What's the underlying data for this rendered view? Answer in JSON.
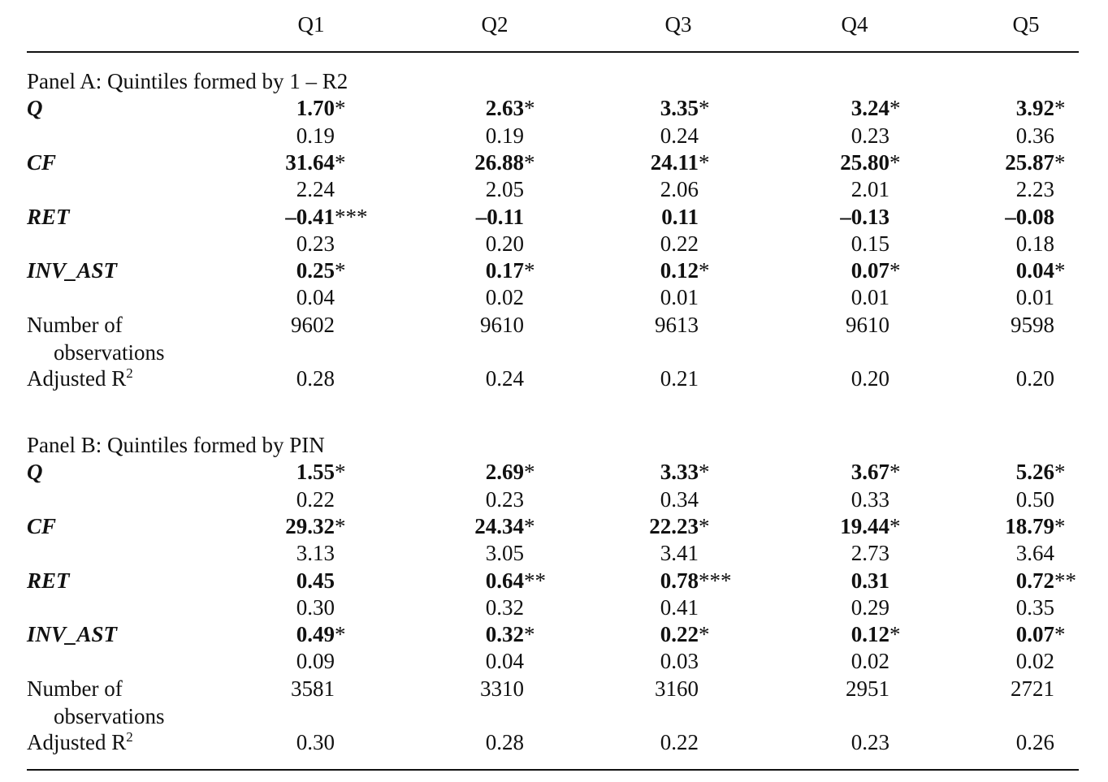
{
  "header": {
    "columns": [
      "Q1",
      "Q2",
      "Q3",
      "Q4",
      "Q5"
    ]
  },
  "panels": [
    {
      "title": "Panel A: Quintiles formed by 1 – R2",
      "variables": [
        {
          "name": "Q",
          "coefficients": [
            {
              "value": "1.70",
              "sig": "*"
            },
            {
              "value": "2.63",
              "sig": "*"
            },
            {
              "value": "3.35",
              "sig": "*"
            },
            {
              "value": "3.24",
              "sig": "*"
            },
            {
              "value": "3.92",
              "sig": "*"
            }
          ],
          "std_errors": [
            "0.19",
            "0.19",
            "0.24",
            "0.23",
            "0.36"
          ]
        },
        {
          "name": "CF",
          "coefficients": [
            {
              "value": "31.64",
              "sig": "*"
            },
            {
              "value": "26.88",
              "sig": "*"
            },
            {
              "value": "24.11",
              "sig": "*"
            },
            {
              "value": "25.80",
              "sig": "*"
            },
            {
              "value": "25.87",
              "sig": "*"
            }
          ],
          "std_errors": [
            "2.24",
            "2.05",
            "2.06",
            "2.01",
            "2.23"
          ]
        },
        {
          "name": "RET",
          "coefficients": [
            {
              "value": "–0.41",
              "sig": "***"
            },
            {
              "value": "–0.11"
            },
            {
              "value": "0.11"
            },
            {
              "value": "–0.13"
            },
            {
              "value": "–0.08"
            }
          ],
          "std_errors": [
            "0.23",
            "0.20",
            "0.22",
            "0.15",
            "0.18"
          ]
        },
        {
          "name": "INV_AST",
          "coefficients": [
            {
              "value": "0.25",
              "sig": "*"
            },
            {
              "value": "0.17",
              "sig": "*"
            },
            {
              "value": "0.12",
              "sig": "*"
            },
            {
              "value": "0.07",
              "sig": "*"
            },
            {
              "value": "0.04",
              "sig": "*"
            }
          ],
          "std_errors": [
            "0.04",
            "0.02",
            "0.01",
            "0.01",
            "0.01"
          ]
        }
      ],
      "observations": {
        "label": "Number of observations",
        "values": [
          "9602",
          "9610",
          "9613",
          "9610",
          "9598"
        ]
      },
      "adjusted_r2": {
        "label": "Adjusted R",
        "label_sup": "2",
        "values": [
          "0.28",
          "0.24",
          "0.21",
          "0.20",
          "0.20"
        ]
      }
    },
    {
      "title": "Panel B: Quintiles formed by PIN",
      "variables": [
        {
          "name": "Q",
          "coefficients": [
            {
              "value": "1.55",
              "sig": "*"
            },
            {
              "value": "2.69",
              "sig": "*"
            },
            {
              "value": "3.33",
              "sig": "*"
            },
            {
              "value": "3.67",
              "sig": "*"
            },
            {
              "value": "5.26",
              "sig": "*"
            }
          ],
          "std_errors": [
            "0.22",
            "0.23",
            "0.34",
            "0.33",
            "0.50"
          ]
        },
        {
          "name": "CF",
          "coefficients": [
            {
              "value": "29.32",
              "sig": "*"
            },
            {
              "value": "24.34",
              "sig": "*"
            },
            {
              "value": "22.23",
              "sig": "*"
            },
            {
              "value": "19.44",
              "sig": "*"
            },
            {
              "value": "18.79",
              "sig": "*"
            }
          ],
          "std_errors": [
            "3.13",
            "3.05",
            "3.41",
            "2.73",
            "3.64"
          ]
        },
        {
          "name": "RET",
          "coefficients": [
            {
              "value": "0.45"
            },
            {
              "value": "0.64",
              "sig": "**"
            },
            {
              "value": "0.78",
              "sig": "***"
            },
            {
              "value": "0.31"
            },
            {
              "value": "0.72",
              "sig": "**"
            }
          ],
          "std_errors": [
            "0.30",
            "0.32",
            "0.41",
            "0.29",
            "0.35"
          ]
        },
        {
          "name": "INV_AST",
          "coefficients": [
            {
              "value": "0.49",
              "sig": "*"
            },
            {
              "value": "0.32",
              "sig": "*"
            },
            {
              "value": "0.22",
              "sig": "*"
            },
            {
              "value": "0.12",
              "sig": "*"
            },
            {
              "value": "0.07",
              "sig": "*"
            }
          ],
          "std_errors": [
            "0.09",
            "0.04",
            "0.03",
            "0.02",
            "0.02"
          ]
        }
      ],
      "observations": {
        "label": "Number of observations",
        "values": [
          "3581",
          "3310",
          "3160",
          "2951",
          "2721"
        ]
      },
      "adjusted_r2": {
        "label": "Adjusted R",
        "label_sup": "2",
        "values": [
          "0.30",
          "0.28",
          "0.22",
          "0.23",
          "0.26"
        ]
      }
    }
  ]
}
